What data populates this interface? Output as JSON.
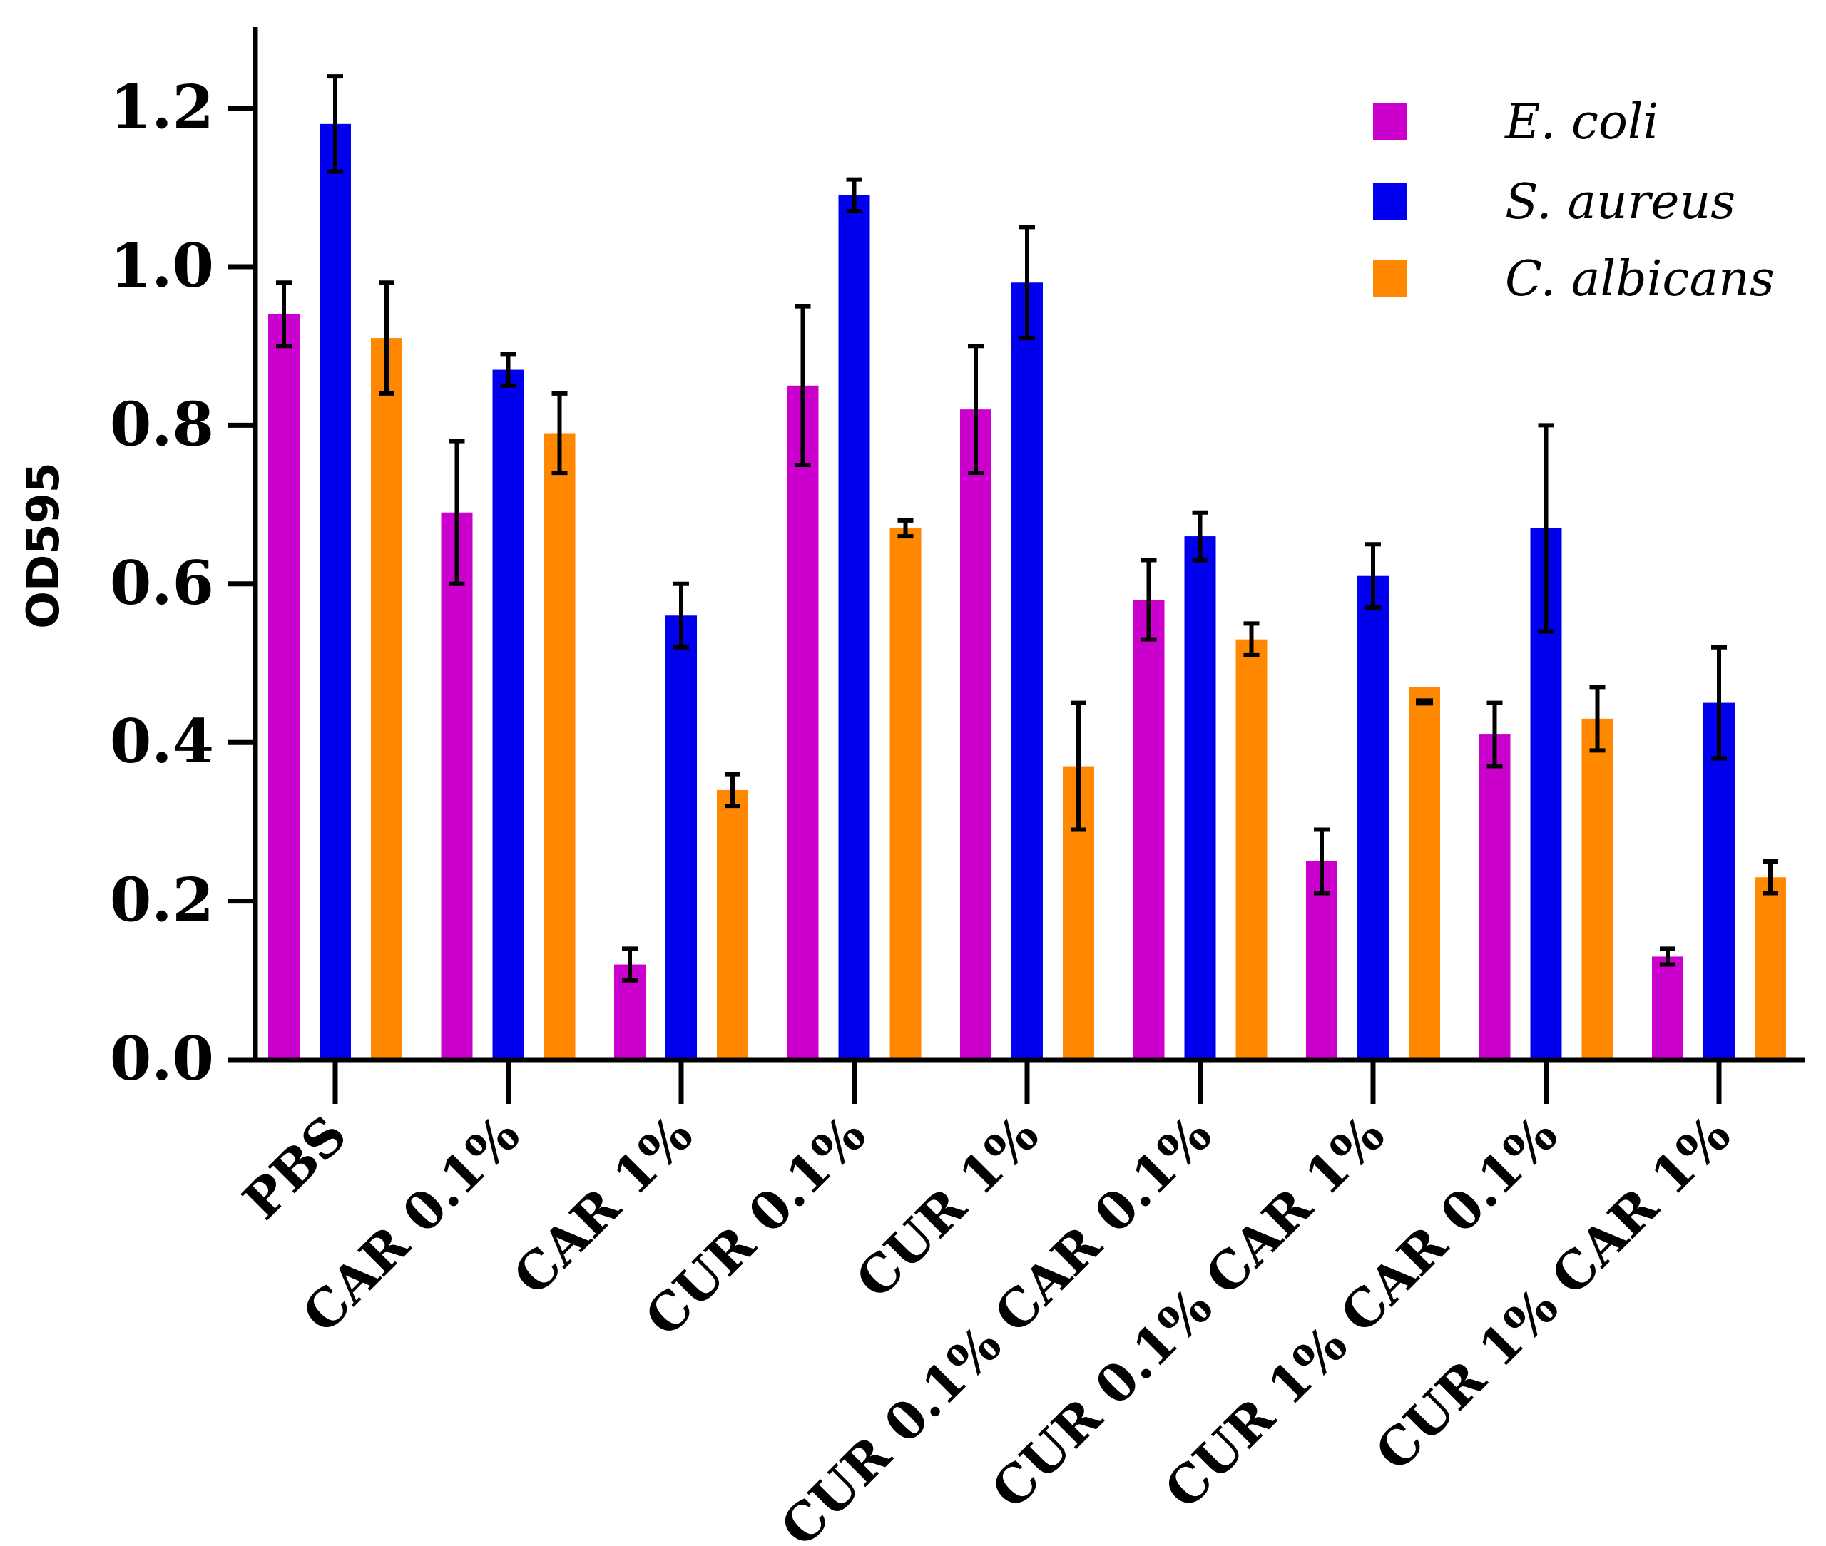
{
  "chart_data": {
    "type": "bar",
    "title": "",
    "xlabel": "",
    "ylabel": "OD595",
    "ylim": [
      0,
      1.3
    ],
    "yticks": [
      0.0,
      0.2,
      0.4,
      0.6,
      0.8,
      1.0,
      1.2
    ],
    "ytick_labels": [
      "0.0",
      "0.2",
      "0.4",
      "0.6",
      "0.8",
      "1.0",
      "1.2"
    ],
    "legend_position": "top-right",
    "categories": [
      "PBS",
      "CAR 0.1%",
      "CAR 1%",
      "CUR 0.1%",
      "CUR 1%",
      "CUR 0.1% CAR 0.1%",
      "CUR 0.1% CAR 1%",
      "CUR 1% CAR 0.1%",
      "CUR 1% CAR 1%"
    ],
    "series": [
      {
        "name": "E. coli",
        "color": "#cc00cc",
        "values": [
          0.94,
          0.69,
          0.12,
          0.85,
          0.82,
          0.58,
          0.25,
          0.41,
          0.13
        ],
        "errors": [
          0.04,
          0.09,
          0.02,
          0.1,
          0.08,
          0.05,
          0.04,
          0.04,
          0.01
        ]
      },
      {
        "name": "S. aureus",
        "color": "#0000ee",
        "values": [
          1.18,
          0.87,
          0.56,
          1.09,
          0.98,
          0.66,
          0.61,
          0.67,
          0.45
        ],
        "errors": [
          0.06,
          0.02,
          0.04,
          0.02,
          0.07,
          0.03,
          0.04,
          0.13,
          0.07
        ]
      },
      {
        "name": "C. albicans",
        "color": "#ff8800",
        "values": [
          0.91,
          0.79,
          0.34,
          0.67,
          0.37,
          0.53,
          0.47,
          0.43,
          0.23
        ],
        "errors": [
          0.07,
          0.05,
          0.02,
          0.01,
          0.08,
          0.02,
          0.0,
          0.04,
          0.02
        ]
      }
    ]
  }
}
